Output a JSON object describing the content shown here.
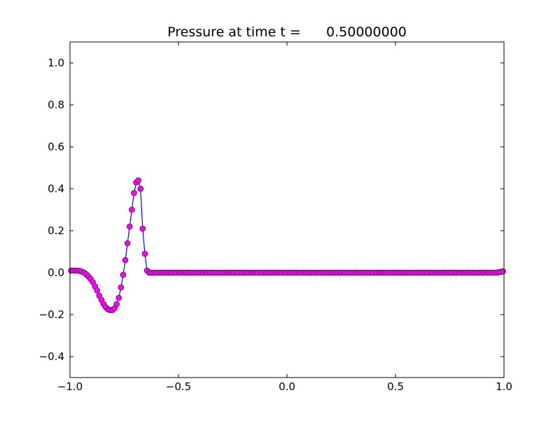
{
  "chart_data": {
    "type": "line",
    "title": "Pressure at time t =      0.50000000",
    "xlabel": "",
    "ylabel": "",
    "xlim": [
      -1.0,
      1.0
    ],
    "ylim": [
      -0.5,
      1.1
    ],
    "grid": false,
    "x_ticks": [
      -1.0,
      -0.5,
      0.0,
      0.5,
      1.0
    ],
    "x_tick_labels": [
      "−1.0",
      "−0.5",
      "0.0",
      "0.5",
      "1.0"
    ],
    "y_ticks": [
      -0.4,
      -0.2,
      0.0,
      0.2,
      0.4,
      0.6,
      0.8,
      1.0
    ],
    "y_tick_labels": [
      "−0.4",
      "−0.2",
      "0.0",
      "0.2",
      "0.4",
      "0.6",
      "0.8",
      "1.0"
    ],
    "series": [
      {
        "line_color": "#0000ff",
        "marker_color": "#ff00ff",
        "marker_edge_color": "#000000",
        "marker": "circle",
        "x": [
          -0.995,
          -0.985,
          -0.975,
          -0.965,
          -0.955,
          -0.945,
          -0.935,
          -0.925,
          -0.915,
          -0.905,
          -0.895,
          -0.885,
          -0.875,
          -0.865,
          -0.855,
          -0.845,
          -0.835,
          -0.825,
          -0.815,
          -0.805,
          -0.795,
          -0.785,
          -0.775,
          -0.765,
          -0.755,
          -0.745,
          -0.735,
          -0.725,
          -0.715,
          -0.705,
          -0.695,
          -0.685,
          -0.675,
          -0.665,
          -0.655,
          -0.645,
          -0.635,
          -0.625,
          -0.615,
          -0.605,
          -0.595,
          -0.585,
          -0.575,
          -0.565,
          -0.555,
          -0.545,
          -0.535,
          -0.525,
          -0.515,
          -0.505,
          -0.495,
          -0.485,
          -0.475,
          -0.465,
          -0.455,
          -0.445,
          -0.435,
          -0.425,
          -0.415,
          -0.405,
          -0.395,
          -0.385,
          -0.375,
          -0.365,
          -0.355,
          -0.345,
          -0.335,
          -0.325,
          -0.315,
          -0.305,
          -0.295,
          -0.285,
          -0.275,
          -0.265,
          -0.255,
          -0.245,
          -0.235,
          -0.225,
          -0.215,
          -0.205,
          -0.195,
          -0.185,
          -0.175,
          -0.165,
          -0.155,
          -0.145,
          -0.135,
          -0.125,
          -0.115,
          -0.105,
          -0.095,
          -0.085,
          -0.075,
          -0.065,
          -0.055,
          -0.045,
          -0.035,
          -0.025,
          -0.015,
          -0.005,
          0.005,
          0.015,
          0.025,
          0.035,
          0.045,
          0.055,
          0.065,
          0.075,
          0.085,
          0.095,
          0.105,
          0.115,
          0.125,
          0.135,
          0.145,
          0.155,
          0.165,
          0.175,
          0.185,
          0.195,
          0.205,
          0.215,
          0.225,
          0.235,
          0.245,
          0.255,
          0.265,
          0.275,
          0.285,
          0.295,
          0.305,
          0.315,
          0.325,
          0.335,
          0.345,
          0.355,
          0.365,
          0.375,
          0.385,
          0.395,
          0.405,
          0.415,
          0.425,
          0.435,
          0.445,
          0.455,
          0.465,
          0.475,
          0.485,
          0.495,
          0.505,
          0.515,
          0.525,
          0.535,
          0.545,
          0.555,
          0.565,
          0.575,
          0.585,
          0.595,
          0.605,
          0.615,
          0.625,
          0.635,
          0.645,
          0.655,
          0.665,
          0.675,
          0.685,
          0.695,
          0.705,
          0.715,
          0.725,
          0.735,
          0.745,
          0.755,
          0.765,
          0.775,
          0.785,
          0.795,
          0.805,
          0.815,
          0.825,
          0.835,
          0.845,
          0.855,
          0.865,
          0.875,
          0.885,
          0.895,
          0.905,
          0.915,
          0.925,
          0.935,
          0.945,
          0.955,
          0.965,
          0.975,
          0.985,
          0.995
        ],
        "y": [
          0.01,
          0.01,
          0.01,
          0.01,
          0.008,
          0.005,
          0.0,
          -0.008,
          -0.018,
          -0.03,
          -0.045,
          -0.065,
          -0.085,
          -0.11,
          -0.13,
          -0.15,
          -0.165,
          -0.175,
          -0.178,
          -0.178,
          -0.17,
          -0.15,
          -0.12,
          -0.07,
          -0.01,
          0.06,
          0.14,
          0.22,
          0.3,
          0.38,
          0.43,
          0.44,
          0.4,
          0.21,
          0.09,
          0.01,
          0.0,
          0.0,
          0.0,
          0.0,
          0.0,
          0.0,
          0.0,
          0.0,
          0.0,
          0.0,
          0.0,
          0.0,
          0.0,
          0.0,
          0.0,
          0.0,
          0.0,
          0.0,
          0.0,
          0.0,
          0.0,
          0.0,
          0.0,
          0.0,
          0.0,
          0.0,
          0.0,
          0.0,
          0.0,
          0.0,
          0.0,
          0.0,
          0.0,
          0.0,
          0.0,
          0.0,
          0.0,
          0.0,
          0.0,
          0.0,
          0.0,
          0.0,
          0.0,
          0.0,
          0.0,
          0.0,
          0.0,
          0.0,
          0.0,
          0.0,
          0.0,
          0.0,
          0.0,
          0.0,
          0.0,
          0.0,
          0.0,
          0.0,
          0.0,
          0.0,
          0.0,
          0.0,
          0.0,
          0.0,
          0.0,
          0.0,
          0.0,
          0.0,
          0.0,
          0.0,
          0.0,
          0.0,
          0.0,
          0.0,
          0.0,
          0.0,
          0.0,
          0.0,
          0.0,
          0.0,
          0.0,
          0.0,
          0.0,
          0.0,
          0.0,
          0.0,
          0.0,
          0.0,
          0.0,
          0.0,
          0.0,
          0.0,
          0.0,
          0.0,
          0.0,
          0.0,
          0.0,
          0.0,
          0.0,
          0.0,
          0.0,
          0.0,
          0.0,
          0.0,
          0.0,
          0.0,
          0.0,
          0.0,
          0.0,
          0.0,
          0.0,
          0.0,
          0.0,
          0.0,
          0.0,
          0.0,
          0.0,
          0.0,
          0.0,
          0.0,
          0.0,
          0.0,
          0.0,
          0.0,
          0.0,
          0.0,
          0.0,
          0.0,
          0.0,
          0.0,
          0.0,
          0.0,
          0.0,
          0.0,
          0.0,
          0.0,
          0.0,
          0.0,
          0.0,
          0.0,
          0.0,
          0.0,
          0.0,
          0.0,
          0.0,
          0.0,
          0.0,
          0.0,
          0.0,
          0.0,
          0.0,
          0.0,
          0.0,
          0.0,
          0.0,
          0.0,
          0.0,
          0.0,
          0.0,
          0.0,
          0.0,
          0.002,
          0.004,
          0.006
        ]
      }
    ]
  }
}
